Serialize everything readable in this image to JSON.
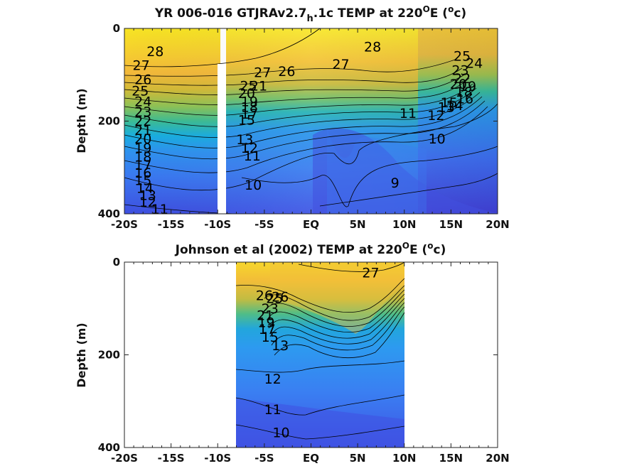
{
  "chart_data": [
    {
      "type": "heatmap",
      "subtype": "filled-contour",
      "title": {
        "main": "YR 006-016 GTJRAv2.7",
        "sub": "h",
        "mid": ".1c TEMP at 220",
        "sup1": "O",
        "mid2": "E (",
        "sup2": "o",
        "end": "c)"
      },
      "xlabel": "",
      "ylabel": "Depth (m)",
      "xlim": [
        -20,
        20
      ],
      "ylim": [
        400,
        0
      ],
      "x_ticks": [
        -20,
        -15,
        -10,
        -5,
        0,
        5,
        10,
        15,
        20
      ],
      "x_tick_labels": [
        "-20S",
        "-15S",
        "-10S",
        "-5S",
        "EQ",
        "5N",
        "10N",
        "15N",
        "20N"
      ],
      "y_ticks": [
        0,
        200,
        400
      ],
      "y_tick_labels": [
        "0",
        "200",
        "400"
      ],
      "data_extent_x": [
        -20,
        20
      ],
      "gap_column_x": -10,
      "colormap": "parula",
      "contour_labels": [
        {
          "text": "28",
          "x": -16.7,
          "y": 60
        },
        {
          "text": "27",
          "x": -18.2,
          "y": 90
        },
        {
          "text": "26",
          "x": -18.0,
          "y": 120
        },
        {
          "text": "25",
          "x": -18.3,
          "y": 145
        },
        {
          "text": "24",
          "x": -18.0,
          "y": 168
        },
        {
          "text": "23",
          "x": -18.0,
          "y": 190
        },
        {
          "text": "22",
          "x": -18.0,
          "y": 210
        },
        {
          "text": "21",
          "x": -18.0,
          "y": 230
        },
        {
          "text": "20",
          "x": -18.0,
          "y": 248
        },
        {
          "text": "19",
          "x": -18.0,
          "y": 268
        },
        {
          "text": "18",
          "x": -18.0,
          "y": 287
        },
        {
          "text": "17",
          "x": -18.0,
          "y": 305
        },
        {
          "text": "16",
          "x": -18.0,
          "y": 322
        },
        {
          "text": "15",
          "x": -18.0,
          "y": 338
        },
        {
          "text": "14",
          "x": -17.8,
          "y": 355
        },
        {
          "text": "13",
          "x": -17.5,
          "y": 370
        },
        {
          "text": "12",
          "x": -17.5,
          "y": 385
        },
        {
          "text": "11",
          "x": -16.2,
          "y": 400
        },
        {
          "text": "27",
          "x": -5.2,
          "y": 105
        },
        {
          "text": "26",
          "x": -2.6,
          "y": 103
        },
        {
          "text": "25",
          "x": -6.7,
          "y": 134
        },
        {
          "text": "21",
          "x": -5.6,
          "y": 134
        },
        {
          "text": "20",
          "x": -6.9,
          "y": 150
        },
        {
          "text": "19",
          "x": -6.6,
          "y": 168
        },
        {
          "text": "18",
          "x": -6.6,
          "y": 180
        },
        {
          "text": "17",
          "x": -6.6,
          "y": 195
        },
        {
          "text": "15",
          "x": -6.9,
          "y": 208
        },
        {
          "text": "13",
          "x": -7.1,
          "y": 250
        },
        {
          "text": "12",
          "x": -6.6,
          "y": 268
        },
        {
          "text": "11",
          "x": -6.3,
          "y": 285
        },
        {
          "text": "27",
          "x": 3.2,
          "y": 87
        },
        {
          "text": "28",
          "x": 6.6,
          "y": 50
        },
        {
          "text": "25",
          "x": 16.2,
          "y": 70
        },
        {
          "text": "24",
          "x": 17.5,
          "y": 85
        },
        {
          "text": "23",
          "x": 16.0,
          "y": 100
        },
        {
          "text": "22",
          "x": 16.2,
          "y": 118
        },
        {
          "text": "20",
          "x": 15.8,
          "y": 130
        },
        {
          "text": "19",
          "x": 16.8,
          "y": 135
        },
        {
          "text": "18",
          "x": 16.4,
          "y": 147
        },
        {
          "text": "16",
          "x": 16.5,
          "y": 162
        },
        {
          "text": "15",
          "x": 14.8,
          "y": 170
        },
        {
          "text": "14",
          "x": 15.4,
          "y": 176
        },
        {
          "text": "13",
          "x": 14.5,
          "y": 180
        },
        {
          "text": "12",
          "x": 13.4,
          "y": 198
        },
        {
          "text": "11",
          "x": 10.4,
          "y": 193
        },
        {
          "text": "10",
          "x": 13.5,
          "y": 248
        },
        {
          "text": "10",
          "x": -6.2,
          "y": 348
        },
        {
          "text": "9",
          "x": 9.0,
          "y": 343
        }
      ]
    },
    {
      "type": "heatmap",
      "subtype": "filled-contour",
      "title": {
        "main": "Johnson et al (2002) TEMP at 220",
        "sup1": "O",
        "mid2": "E (",
        "sup2": "o",
        "end": "c)"
      },
      "xlabel": "",
      "ylabel": "Depth (m)",
      "xlim": [
        -20,
        20
      ],
      "ylim": [
        400,
        0
      ],
      "x_ticks": [
        -20,
        -15,
        -10,
        -5,
        0,
        5,
        10,
        15,
        20
      ],
      "x_tick_labels": [
        "-20S",
        "-15S",
        "-10S",
        "-5S",
        "EQ",
        "5N",
        "10N",
        "15N",
        "20N"
      ],
      "y_ticks": [
        0,
        200,
        400
      ],
      "y_tick_labels": [
        "0",
        "200",
        "400"
      ],
      "data_extent_x": [
        -8,
        10
      ],
      "colormap": "parula",
      "contour_labels": [
        {
          "text": "26",
          "x": -3.3,
          "y": 85
        },
        {
          "text": "27",
          "x": 6.4,
          "y": 33
        },
        {
          "text": "26",
          "x": -5.0,
          "y": 82
        },
        {
          "text": "25",
          "x": -3.9,
          "y": 88
        },
        {
          "text": "23",
          "x": -4.4,
          "y": 110
        },
        {
          "text": "21",
          "x": -4.9,
          "y": 125
        },
        {
          "text": "19",
          "x": -4.8,
          "y": 140
        },
        {
          "text": "17",
          "x": -4.7,
          "y": 155
        },
        {
          "text": "15",
          "x": -4.4,
          "y": 172
        },
        {
          "text": "13",
          "x": -3.3,
          "y": 190
        },
        {
          "text": "12",
          "x": -4.1,
          "y": 262
        },
        {
          "text": "11",
          "x": -4.1,
          "y": 328
        },
        {
          "text": "10",
          "x": -3.2,
          "y": 378
        }
      ]
    }
  ]
}
